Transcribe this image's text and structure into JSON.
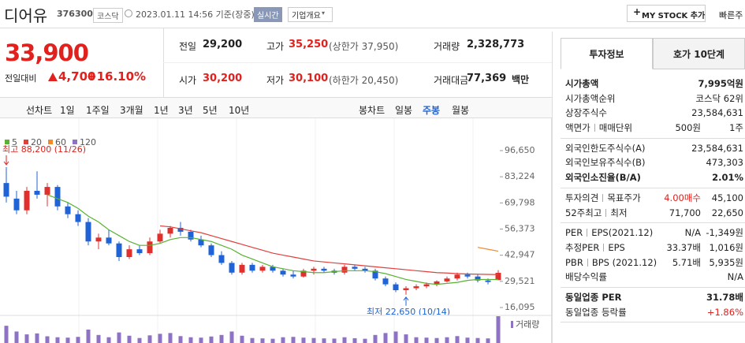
{
  "header": {
    "name": "디어유",
    "code": "376300",
    "market": "코스닥",
    "time": "2023.01.11 14:56 기준(장중)",
    "realtime": "실시간",
    "overview": "기업개요",
    "mystock": "MY STOCK 추가",
    "quick": "빠른주"
  },
  "quote": {
    "price": "33,900",
    "change_label": "전일대비",
    "change": "4,700",
    "rate": "+16.10%"
  },
  "summary": {
    "rows": [
      [
        {
          "label": "전일",
          "value": "29,200"
        },
        {
          "label": "고가",
          "value": "35,250",
          "note": "(상한가 37,950)"
        },
        {
          "label": "거래량",
          "value": "2,328,773"
        }
      ],
      [
        {
          "label": "시가",
          "value": "30,200"
        },
        {
          "label": "저가",
          "value": "30,100",
          "note": "(하한가 20,450)"
        },
        {
          "label": "거래대금",
          "value": "77,369",
          "unit": "백만"
        }
      ]
    ]
  },
  "chart_tabs": {
    "line_label": "선차트",
    "line_periods": [
      "1일",
      "1주일",
      "3개월",
      "1년",
      "3년",
      "5년",
      "10년"
    ],
    "candle_label": "봉차트",
    "candle_periods": [
      "일봉",
      "주봉",
      "월봉"
    ]
  },
  "chart_data": {
    "type": "candlestick",
    "up_color": "#e0302d",
    "down_color": "#1f63d6",
    "volume_color": "#8e72c4",
    "volume_label": "거래량",
    "open": [
      80000,
      72000,
      66000,
      76000,
      74000,
      78000,
      68000,
      64000,
      60000,
      50000,
      52000,
      49000,
      42000,
      46000,
      44000,
      50000,
      54000,
      57000,
      55000,
      51000,
      48000,
      43000,
      39000,
      34000,
      38000,
      35000,
      37000,
      35000,
      33000,
      32000,
      35000,
      36000,
      35000,
      34000,
      37000,
      36000,
      35000,
      31000,
      28000,
      25000,
      26000,
      27000,
      28000,
      29500,
      31000,
      33000,
      32000,
      30000,
      30200
    ],
    "high": [
      88200,
      76000,
      78000,
      86000,
      80000,
      79000,
      70000,
      66000,
      62000,
      54000,
      56000,
      50000,
      48000,
      48000,
      52000,
      56000,
      58000,
      60000,
      56000,
      53000,
      49000,
      45000,
      40000,
      39000,
      39000,
      38000,
      38000,
      36000,
      35000,
      36000,
      37000,
      37000,
      36000,
      38000,
      38000,
      37000,
      36000,
      32000,
      29000,
      27000,
      28000,
      29000,
      30000,
      32000,
      34000,
      34000,
      33000,
      31000,
      35250
    ],
    "low": [
      70000,
      64000,
      64000,
      72000,
      68000,
      66000,
      62000,
      58000,
      48000,
      46000,
      48000,
      40000,
      41000,
      43000,
      43000,
      49000,
      52000,
      53000,
      50000,
      47000,
      42000,
      38000,
      33000,
      33000,
      34000,
      34000,
      34000,
      32000,
      31000,
      31500,
      33000,
      34000,
      33000,
      33000,
      35000,
      34000,
      30000,
      27000,
      24000,
      22650,
      25000,
      26000,
      27000,
      29000,
      30000,
      31000,
      29000,
      28000,
      30100
    ],
    "close": [
      73000,
      66000,
      76000,
      74000,
      78000,
      68000,
      64000,
      60000,
      50000,
      52000,
      49000,
      42000,
      46000,
      44000,
      50000,
      54000,
      57000,
      55000,
      51000,
      48000,
      43000,
      39000,
      34000,
      38000,
      35000,
      37000,
      35000,
      33000,
      32000,
      35000,
      36000,
      35000,
      34000,
      37000,
      36000,
      35000,
      31000,
      28000,
      25000,
      26000,
      27000,
      28000,
      29500,
      31000,
      33000,
      32000,
      30000,
      29200,
      33900
    ],
    "volume": [
      900000,
      600000,
      450000,
      500000,
      350000,
      300000,
      280000,
      320000,
      700000,
      420000,
      300000,
      550000,
      380000,
      260000,
      400000,
      480000,
      520000,
      360000,
      300000,
      280000,
      340000,
      420000,
      600000,
      380000,
      260000,
      240000,
      220000,
      300000,
      320000,
      280000,
      260000,
      240000,
      230000,
      300000,
      250000,
      220000,
      420000,
      520000,
      600000,
      450000,
      300000,
      280000,
      260000,
      300000,
      360000,
      280000,
      260000,
      240000,
      1400000
    ],
    "ma": [
      {
        "name": "5",
        "color": "#59b232",
        "values": [
          null,
          null,
          null,
          null,
          74000,
          72000,
          70000,
          67000,
          63000,
          60000,
          56000,
          53000,
          50000,
          48000,
          48000,
          49000,
          51000,
          52000,
          52000,
          51000,
          50000,
          48000,
          46000,
          43000,
          41000,
          39000,
          37000,
          36000,
          35000,
          34500,
          34000,
          34000,
          34500,
          35000,
          35000,
          35000,
          34500,
          33500,
          32000,
          30500,
          29500,
          28500,
          28000,
          28500,
          29000,
          30000,
          30500,
          30500,
          30500
        ]
      },
      {
        "name": "20",
        "color": "#e0403d",
        "values": [
          null,
          null,
          null,
          null,
          null,
          null,
          null,
          null,
          null,
          null,
          null,
          null,
          null,
          null,
          null,
          58000,
          57500,
          56500,
          55500,
          54500,
          53000,
          51500,
          50000,
          48500,
          47000,
          45500,
          44000,
          43000,
          42000,
          41000,
          40000,
          39500,
          39000,
          38500,
          38000,
          37500,
          37000,
          36500,
          36000,
          35500,
          35000,
          34500,
          34000,
          33800,
          33500,
          33300,
          33200,
          33100,
          33000
        ]
      },
      {
        "name": "60",
        "color": "#f08a2c",
        "values": [
          null,
          null,
          null,
          null,
          null,
          null,
          null,
          null,
          null,
          null,
          null,
          null,
          null,
          null,
          null,
          null,
          null,
          null,
          null,
          null,
          null,
          null,
          null,
          null,
          null,
          null,
          null,
          null,
          null,
          null,
          null,
          null,
          null,
          null,
          null,
          null,
          null,
          null,
          null,
          null,
          null,
          null,
          null,
          null,
          null,
          null,
          47000,
          46000,
          45000
        ]
      },
      {
        "name": "120",
        "color": "#8e72c4",
        "values": [
          null,
          null,
          null,
          null,
          null,
          null,
          null,
          null,
          null,
          null,
          null,
          null,
          null,
          null,
          null,
          null,
          null,
          null,
          null,
          null,
          null,
          null,
          null,
          null,
          null,
          null,
          null,
          null,
          null,
          null,
          null,
          null,
          null,
          null,
          null,
          null,
          null,
          null,
          null,
          null,
          null,
          null,
          null,
          null,
          null,
          null,
          null,
          null,
          null
        ]
      }
    ],
    "ylim": [
      12857,
      104341
    ],
    "yticks": [
      {
        "value": 96650,
        "label": "96,650"
      },
      {
        "value": 83224,
        "label": "83,224"
      },
      {
        "value": 69798,
        "label": "69,798"
      },
      {
        "value": 56373,
        "label": "56,373"
      },
      {
        "value": 42947,
        "label": "42,947"
      },
      {
        "value": 29521,
        "label": "29,521"
      },
      {
        "value": 16095,
        "label": "16,095"
      }
    ],
    "annotations": [
      {
        "text": "최고 88,200 (11/26)"
      },
      {
        "text": "최저 22,650 (10/14)"
      }
    ]
  },
  "side": {
    "tabs": [
      "투자정보",
      "호가 10단계"
    ],
    "groups": [
      {
        "rows": [
          {
            "labels": [
              "시가총액"
            ],
            "values": [
              "7,995억원"
            ]
          },
          {
            "labels": [
              "시가총액순위"
            ],
            "values": [
              "코스닥 62위"
            ]
          },
          {
            "labels": [
              "상장주식수"
            ],
            "values": [
              "23,584,631"
            ]
          },
          {
            "labels": [
              "액면가",
              "매매단위"
            ],
            "values": [
              "500원",
              "1주"
            ]
          }
        ]
      },
      {
        "rows": [
          {
            "labels": [
              "외국인한도주식수(A)"
            ],
            "values": [
              "23,584,631"
            ]
          },
          {
            "labels": [
              "외국인보유주식수(B)"
            ],
            "values": [
              "473,303"
            ]
          },
          {
            "labels": [
              "외국인소진율(B/A)"
            ],
            "values": [
              "2.01%"
            ]
          }
        ]
      },
      {
        "rows": [
          {
            "labels": [
              "투자의견",
              "목표주가"
            ],
            "values": [
              "4.00매수",
              "45,100"
            ]
          },
          {
            "labels": [
              "52주최고",
              "최저"
            ],
            "values": [
              "71,700",
              "22,650"
            ]
          }
        ]
      },
      {
        "rows": [
          {
            "labels": [
              "PER",
              "EPS(2021.12)"
            ],
            "values": [
              "N/A",
              "-1,349원"
            ]
          },
          {
            "labels": [
              "추정PER",
              "EPS"
            ],
            "values": [
              "33.37배",
              "1,016원"
            ]
          },
          {
            "labels": [
              "PBR",
              "BPS (2021.12)"
            ],
            "values": [
              "5.71배",
              "5,935원"
            ]
          },
          {
            "labels": [
              "배당수익률"
            ],
            "values": [
              "N/A"
            ]
          }
        ]
      },
      {
        "rows": [
          {
            "labels": [
              "동일업종 PER"
            ],
            "values": [
              "31.78배"
            ]
          },
          {
            "labels": [
              "동일업종 등락률"
            ],
            "values": [
              "+1.86%"
            ]
          }
        ]
      }
    ]
  }
}
